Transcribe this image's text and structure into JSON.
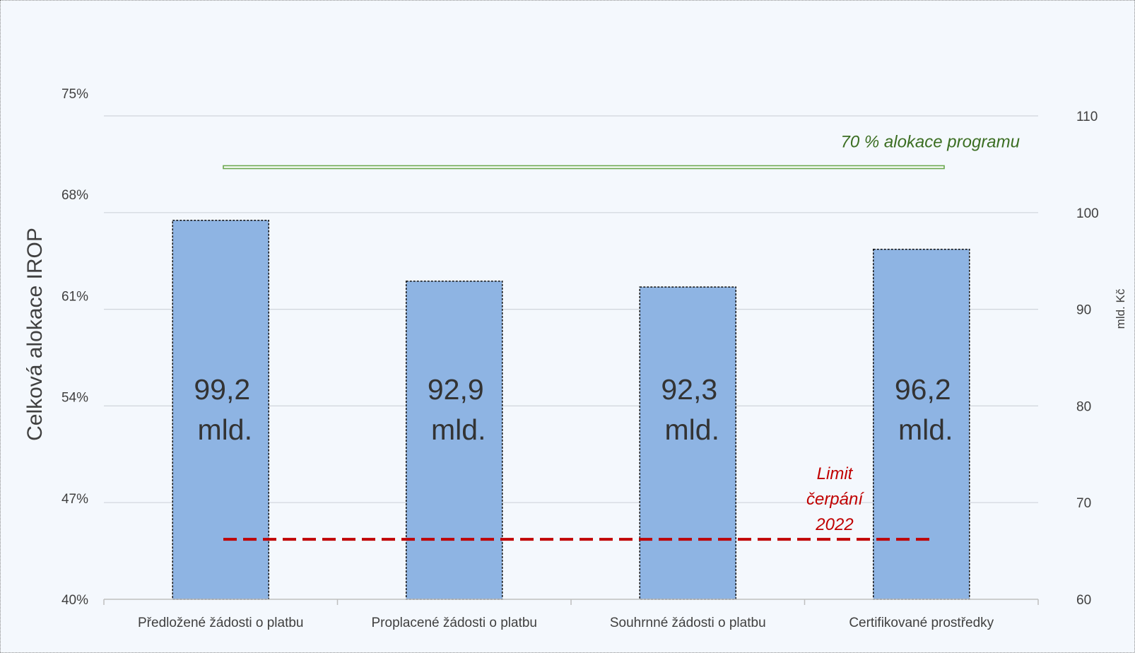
{
  "chart_data": {
    "type": "bar",
    "categories": [
      "Předložené žádosti o platbu",
      "Proplacené žádosti o platbu",
      "Souhrnné žádosti o platbu",
      "Certifikované prostředky"
    ],
    "values": [
      99.2,
      92.9,
      92.3,
      96.2
    ],
    "value_labels": [
      [
        "99,2",
        "mld."
      ],
      [
        "92,9",
        "mld."
      ],
      [
        "92,3",
        "mld."
      ],
      [
        "96,2",
        "mld."
      ]
    ],
    "ylabel_left": "Celková alokace IROP",
    "ylabel_right": "mld. Kč",
    "yticks_left": [
      "75%",
      "68%",
      "61%",
      "54%",
      "47%",
      "40%"
    ],
    "yticks_right": [
      "110",
      "100",
      "90",
      "80",
      "70",
      "60"
    ],
    "ylim_right": [
      60,
      110
    ],
    "ylim_left": [
      0.4,
      0.75
    ],
    "reference_lines": [
      {
        "label": "70 % alokace programu",
        "value_right_axis": 104.7,
        "color": "#6aa84f",
        "style": "solid"
      },
      {
        "label_lines": [
          "Limit",
          "čerpání",
          "2022"
        ],
        "value_right_axis": 66.2,
        "color": "#c00000",
        "style": "dashed"
      }
    ],
    "bar_color": "#8eb4e3",
    "grid": true
  }
}
